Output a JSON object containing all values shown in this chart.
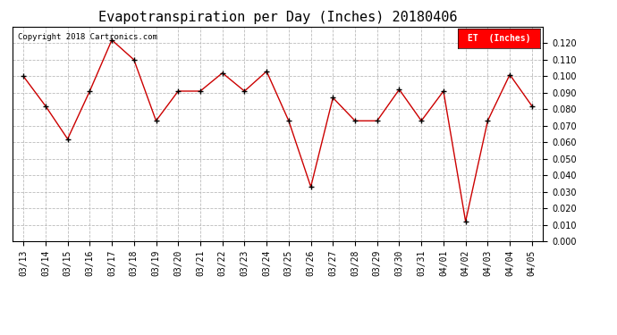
{
  "title": "Evapotranspiration per Day (Inches) 20180406",
  "copyright_text": "Copyright 2018 Cartronics.com",
  "legend_label": "ET  (Inches)",
  "legend_bg": "#ff0000",
  "legend_fg": "#ffffff",
  "x_labels": [
    "03/13",
    "03/14",
    "03/15",
    "03/16",
    "03/17",
    "03/18",
    "03/19",
    "03/20",
    "03/21",
    "03/22",
    "03/23",
    "03/24",
    "03/25",
    "03/26",
    "03/27",
    "03/28",
    "03/29",
    "03/30",
    "03/31",
    "04/01",
    "04/02",
    "04/03",
    "04/04",
    "04/05"
  ],
  "y_values": [
    0.1,
    0.082,
    0.062,
    0.091,
    0.122,
    0.11,
    0.073,
    0.091,
    0.091,
    0.102,
    0.091,
    0.103,
    0.073,
    0.033,
    0.087,
    0.073,
    0.073,
    0.092,
    0.073,
    0.091,
    0.012,
    0.073,
    0.101,
    0.082
  ],
  "line_color": "#cc0000",
  "marker_color": "#000000",
  "ylim": [
    0.0,
    0.13
  ],
  "yticks": [
    0.0,
    0.01,
    0.02,
    0.03,
    0.04,
    0.05,
    0.06,
    0.07,
    0.08,
    0.09,
    0.1,
    0.11,
    0.12
  ],
  "bg_color": "#ffffff",
  "grid_color": "#bbbbbb",
  "title_fontsize": 11,
  "tick_fontsize": 7,
  "copyright_fontsize": 6.5,
  "legend_fontsize": 7
}
